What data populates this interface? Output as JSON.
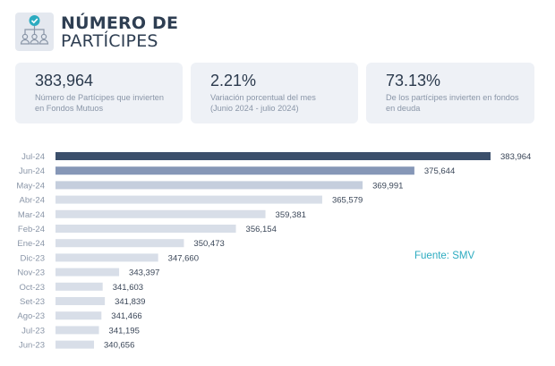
{
  "header": {
    "title_line1": "NÚMERO DE",
    "title_line2": "PARTÍCIPES",
    "icon": "org-chart-people-check-icon"
  },
  "cards": [
    {
      "value": "383,964",
      "desc_line1": "Número de Partícipes que invierten",
      "desc_line2": "en Fondos Mutuos"
    },
    {
      "value": "2.21%",
      "desc_line1": "Variación porcentual del mes",
      "desc_line2": "(Junio 2024 - julio 2024)"
    },
    {
      "value": "73.13%",
      "desc_line1": "De los partícipes invierten en fondos",
      "desc_line2": "en deuda"
    }
  ],
  "source": "Fuente: SMV",
  "colors": {
    "title": "#2e3e52",
    "accent": "#2cabc0",
    "bar_latest": "#3b4f6b",
    "bar_previous": "#8697b7",
    "bar_2": "#c5cedd",
    "bar_rest": "#d8dee8"
  },
  "chart_data": {
    "type": "bar",
    "orientation": "horizontal",
    "title": "",
    "xlabel": "",
    "ylabel": "",
    "categories": [
      "Jul-24",
      "Jun-24",
      "May-24",
      "Abr-24",
      "Mar-24",
      "Feb-24",
      "Ene-24",
      "Dic-23",
      "Nov-23",
      "Oct-23",
      "Set-23",
      "Ago-23",
      "Jul-23",
      "Jun-23"
    ],
    "values": [
      383964,
      375644,
      369991,
      365579,
      359381,
      356154,
      350473,
      347660,
      343397,
      341603,
      341839,
      341466,
      341195,
      340656
    ],
    "labels": [
      "383,964",
      "375,644",
      "369,991",
      "365,579",
      "359,381",
      "356,154",
      "350,473",
      "347,660",
      "343,397",
      "341,603",
      "341,839",
      "341,466",
      "341,195",
      "340,656"
    ],
    "xlim": [
      336450,
      384000
    ],
    "grid": false,
    "legend": "none"
  }
}
